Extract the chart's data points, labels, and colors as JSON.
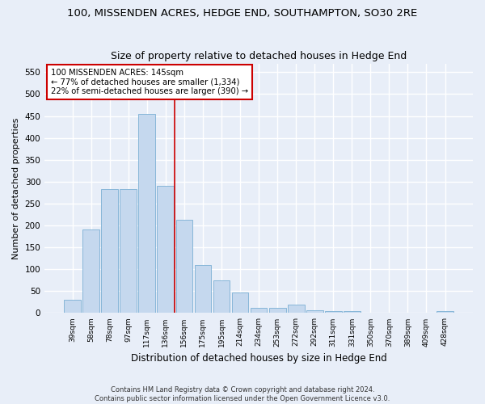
{
  "title": "100, MISSENDEN ACRES, HEDGE END, SOUTHAMPTON, SO30 2RE",
  "subtitle": "Size of property relative to detached houses in Hedge End",
  "xlabel": "Distribution of detached houses by size in Hedge End",
  "ylabel": "Number of detached properties",
  "categories": [
    "39sqm",
    "58sqm",
    "78sqm",
    "97sqm",
    "117sqm",
    "136sqm",
    "156sqm",
    "175sqm",
    "195sqm",
    "214sqm",
    "234sqm",
    "253sqm",
    "272sqm",
    "292sqm",
    "311sqm",
    "331sqm",
    "350sqm",
    "370sqm",
    "389sqm",
    "409sqm",
    "428sqm"
  ],
  "values": [
    30,
    190,
    283,
    283,
    455,
    290,
    213,
    110,
    75,
    47,
    12,
    12,
    20,
    7,
    5,
    5,
    0,
    0,
    0,
    0,
    5
  ],
  "bar_color": "#c5d8ee",
  "bar_edge_color": "#7aafd4",
  "vline_x": 5.5,
  "vline_color": "#cc0000",
  "annotation_text": "100 MISSENDEN ACRES: 145sqm\n← 77% of detached houses are smaller (1,334)\n22% of semi-detached houses are larger (390) →",
  "annotation_box_color": "#ffffff",
  "annotation_box_edge": "#cc0000",
  "ylim": [
    0,
    570
  ],
  "yticks": [
    0,
    50,
    100,
    150,
    200,
    250,
    300,
    350,
    400,
    450,
    500,
    550
  ],
  "background_color": "#e8eef8",
  "grid_color": "#ffffff",
  "footer": "Contains HM Land Registry data © Crown copyright and database right 2024.\nContains public sector information licensed under the Open Government Licence v3.0.",
  "title_fontsize": 9.5,
  "subtitle_fontsize": 9,
  "xlabel_fontsize": 8.5,
  "ylabel_fontsize": 8
}
